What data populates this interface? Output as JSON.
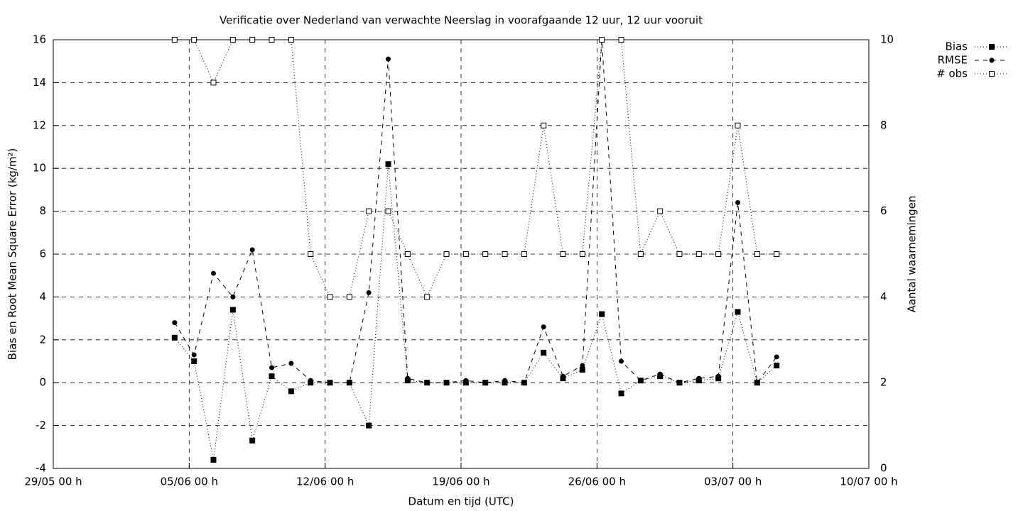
{
  "chart_data": {
    "type": "line",
    "title": "Verificatie over Nederland van verwachte Neerslag in voorafgaande 12 uur, 12 uur vooruit",
    "xlabel": "Datum en tijd (UTC)",
    "ylabel": "Bias en Root Mean Square Error (kg/m²)",
    "y2label": "Aantal waarnemingen",
    "x": [
      "04/06 06 h",
      "05/06 06 h",
      "06/06 06 h",
      "07/06 06 h",
      "08/06 06 h",
      "09/06 06 h",
      "10/06 06 h",
      "11/06 06 h",
      "12/06 06 h",
      "13/06 06 h",
      "14/06 06 h",
      "15/06 06 h",
      "16/06 06 h",
      "17/06 06 h",
      "18/06 06 h",
      "19/06 06 h",
      "20/06 06 h",
      "21/06 06 h",
      "22/06 06 h",
      "23/06 06 h",
      "24/06 06 h",
      "25/06 06 h",
      "26/06 06 h",
      "27/06 06 h",
      "28/06 06 h",
      "29/06 06 h",
      "30/06 06 h",
      "01/07 06 h",
      "02/07 06 h",
      "03/07 06 h",
      "04/07 06 h",
      "05/07 06 h"
    ],
    "xlim": [
      "29/05 00 h",
      "10/07 00 h"
    ],
    "xticks": [
      "29/05 00 h",
      "05/06 00 h",
      "12/06 00 h",
      "19/06 00 h",
      "26/06 00 h",
      "03/07 00 h",
      "10/07 00 h"
    ],
    "ylim": [
      -4,
      16
    ],
    "yticks": [
      -4,
      -2,
      0,
      2,
      4,
      6,
      8,
      10,
      12,
      14,
      16
    ],
    "y2lim": [
      0,
      10
    ],
    "y2ticks": [
      0,
      2,
      4,
      6,
      8,
      10
    ],
    "grid": true,
    "legend": "top-right",
    "series": [
      {
        "name": "Bias",
        "color": "#000000",
        "values": [
          2.1,
          1.0,
          -3.6,
          3.4,
          -2.7,
          0.3,
          -0.4,
          0,
          0,
          0,
          -2.0,
          10.2,
          0.1,
          0,
          0,
          0,
          0,
          0,
          0,
          1.4,
          0.2,
          0.6,
          3.2,
          -0.5,
          0.1,
          0.3,
          0,
          0.1,
          0.2,
          3.3,
          0,
          0.8
        ]
      },
      {
        "name": "RMSE",
        "color": "#000000",
        "values": [
          2.8,
          1.3,
          5.1,
          4.0,
          6.2,
          0.7,
          0.9,
          0.1,
          0,
          0,
          4.2,
          15.1,
          0.2,
          0,
          0,
          0.1,
          0,
          0.1,
          0,
          2.6,
          0.3,
          0.8,
          16.0,
          1.0,
          0.1,
          0.4,
          0,
          0.2,
          0.3,
          8.4,
          0,
          1.2
        ]
      },
      {
        "name": "# obs",
        "color": "#000000",
        "axis": "y2",
        "values": [
          10,
          10,
          9,
          10,
          10,
          10,
          10,
          5,
          4,
          4,
          6,
          6,
          5,
          4,
          5,
          5,
          5,
          5,
          5,
          8,
          5,
          5,
          10,
          10,
          5,
          6,
          5,
          5,
          5,
          8,
          5,
          5
        ]
      }
    ]
  }
}
